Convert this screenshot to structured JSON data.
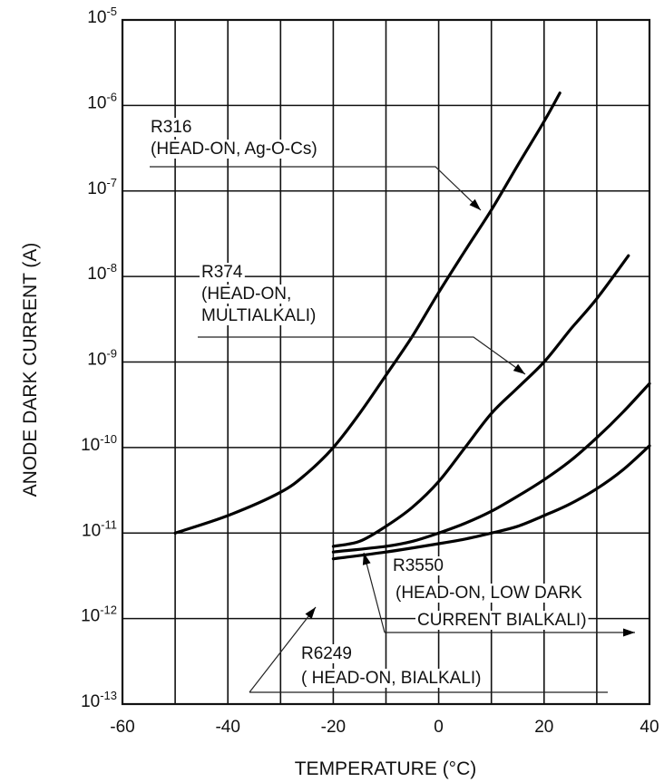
{
  "chart_data": {
    "type": "line",
    "title": "",
    "xlabel": "TEMPERATURE (°C)",
    "ylabel": "ANODE DARK CURRENT (A)",
    "xlim": [
      -60,
      40
    ],
    "ylim": [
      1e-13,
      1e-05
    ],
    "yscale": "log",
    "grid": true,
    "x_ticks": [
      {
        "value": -60,
        "label": "-60"
      },
      {
        "value": -40,
        "label": "-40"
      },
      {
        "value": -20,
        "label": "-20"
      },
      {
        "value": 0,
        "label": "0"
      },
      {
        "value": 20,
        "label": "20"
      },
      {
        "value": 40,
        "label": "40"
      }
    ],
    "y_ticks": [
      {
        "exp": -5,
        "base": "10",
        "sup": "-5"
      },
      {
        "exp": -6,
        "base": "10",
        "sup": "-6"
      },
      {
        "exp": -7,
        "base": "10",
        "sup": "-7"
      },
      {
        "exp": -8,
        "base": "10",
        "sup": "-8"
      },
      {
        "exp": -9,
        "base": "10",
        "sup": "-9"
      },
      {
        "exp": -10,
        "base": "10",
        "sup": "-10"
      },
      {
        "exp": -11,
        "base": "10",
        "sup": "-11"
      },
      {
        "exp": -12,
        "base": "10",
        "sup": "-12"
      },
      {
        "exp": -13,
        "base": "10",
        "sup": "-13"
      }
    ],
    "series": [
      {
        "name": "R316",
        "x": [
          -50,
          -40,
          -30,
          -25,
          -20,
          -15,
          -10,
          -5,
          0,
          5,
          10,
          15,
          20,
          23
        ],
        "y": [
          1e-11,
          1.6e-11,
          3e-11,
          5e-11,
          1e-10,
          2.5e-10,
          7e-10,
          2e-09,
          6.5e-09,
          2e-08,
          6e-08,
          2e-07,
          6.5e-07,
          1.4e-06
        ]
      },
      {
        "name": "R374",
        "x": [
          -20,
          -15,
          -10,
          -5,
          0,
          5,
          10,
          15,
          20,
          25,
          30,
          36
        ],
        "y": [
          7e-12,
          8e-12,
          1.2e-11,
          2e-11,
          4e-11,
          1e-10,
          2.5e-10,
          5e-10,
          1e-09,
          2.4e-09,
          5.5e-09,
          1.75e-08
        ]
      },
      {
        "name": "R3550",
        "x": [
          -20,
          -10,
          -5,
          0,
          5,
          10,
          15,
          20,
          25,
          30,
          35,
          40
        ],
        "y": [
          6e-12,
          7e-12,
          8e-12,
          1e-11,
          1.3e-11,
          1.8e-11,
          2.7e-11,
          4.2e-11,
          7e-11,
          1.3e-10,
          2.6e-10,
          5.6e-10
        ]
      },
      {
        "name": "R6249",
        "x": [
          -20,
          -10,
          0,
          5,
          10,
          15,
          20,
          25,
          30,
          35,
          40
        ],
        "y": [
          5e-12,
          6e-12,
          7.5e-12,
          8.5e-12,
          1e-11,
          1.2e-11,
          1.6e-11,
          2.2e-11,
          3.3e-11,
          5.5e-11,
          1.05e-10
        ]
      }
    ],
    "annotations": [
      {
        "lines": [
          "R316",
          "(HEAD-ON, Ag-O-Cs)"
        ]
      },
      {
        "lines": [
          "R374",
          "(HEAD-ON,",
          "MULTIALKALI)"
        ]
      },
      {
        "lines": [
          "R3550",
          "(HEAD-ON, LOW DARK",
          "CURRENT BIALKALI)"
        ]
      },
      {
        "lines": [
          "R6249",
          "( HEAD-ON, BIALKALI)"
        ]
      }
    ]
  }
}
